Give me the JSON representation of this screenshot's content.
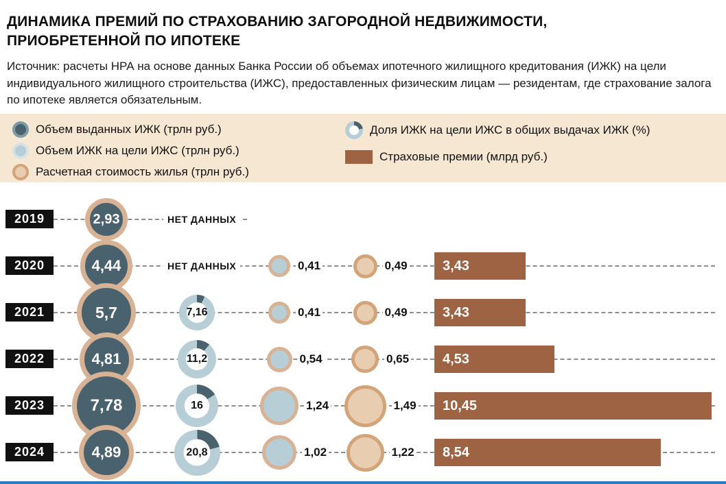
{
  "title": {
    "lines": [
      "ДИНАМИКА ПРЕМИЙ ПО СТРАХОВАНИЮ ЗАГОРОДНОЙ НЕДВИЖИМОСТИ,",
      "ПРИОБРЕТЕННОЙ ПО ИПОТЕКЕ"
    ]
  },
  "source": "Источник: расчеты НРА на основе данных Банка России об объемах ипотечного жилищного кредитования (ИЖК) на цели индивидуального жилищного строительства (ИЖС), предоставленных физическим лицам — резидентам, где страхование залога по ипотеке является обязательным.",
  "legend": {
    "items": [
      {
        "label": "Объем выданных ИЖК (трлн руб.)",
        "swatch": "dark-circle"
      },
      {
        "label": "Объем ИЖК на цели ИЖС (трлн руб.)",
        "swatch": "light-blue-circle"
      },
      {
        "label": "Расчетная стоимость жилья (трлн руб.)",
        "swatch": "beige-circle"
      },
      {
        "label": "Доля ИЖК на цели ИЖС в общих выдачах ИЖК (%)",
        "swatch": "donut"
      },
      {
        "label": "Страховые премии (млрд руб.)",
        "swatch": "brown-bar"
      }
    ]
  },
  "colors": {
    "dark_circle": "#4a626e",
    "dark_ring": "#7f9aa5",
    "light_blue": "#b7ced6",
    "light_blue_ring": "#d6e2e6",
    "tan_ring": "#d8b294",
    "beige_fill": "#e9cdb0",
    "beige_ring": "#d3a379",
    "bar": "#9e6343",
    "legend_bg": "#f5e7d1",
    "year_box": "#111111",
    "dash": "#8c8c8c",
    "footer_line": "#2d7cc0"
  },
  "chart_data": {
    "type": "bar",
    "categories": [
      "2019",
      "2020",
      "2021",
      "2022",
      "2023",
      "2024"
    ],
    "no_data_label": "НЕТ ДАННЫХ",
    "series": [
      {
        "name": "Объем выданных ИЖК (трлн руб.)",
        "values": [
          2.93,
          4.44,
          5.7,
          4.81,
          7.78,
          4.89
        ],
        "labels": [
          "2,93",
          "4,44",
          "5,7",
          "4,81",
          "7,78",
          "4,89"
        ]
      },
      {
        "name": "Доля ИЖК на цели ИЖС в общих выдачах ИЖК (%)",
        "values": [
          null,
          null,
          7.16,
          11.2,
          16,
          20.8
        ],
        "labels": [
          null,
          null,
          "7,16",
          "11,2",
          "16",
          "20,8"
        ]
      },
      {
        "name": "Объем ИЖК на цели ИЖС (трлн руб.)",
        "values": [
          null,
          0.41,
          0.41,
          0.54,
          1.24,
          1.02
        ],
        "labels": [
          null,
          "0,41",
          "0,41",
          "0,54",
          "1,24",
          "1,02"
        ]
      },
      {
        "name": "Расчетная стоимость жилья (трлн руб.)",
        "values": [
          null,
          0.49,
          0.49,
          0.65,
          1.49,
          1.22
        ],
        "labels": [
          null,
          "0,49",
          "0,49",
          "0,65",
          "1,49",
          "1,22"
        ]
      },
      {
        "name": "Страховые премии (млрд руб.)",
        "values": [
          null,
          3.43,
          3.43,
          4.53,
          10.45,
          8.54
        ],
        "labels": [
          null,
          "3,43",
          "3,43",
          "4,53",
          "10,45",
          "8,54"
        ]
      }
    ]
  }
}
